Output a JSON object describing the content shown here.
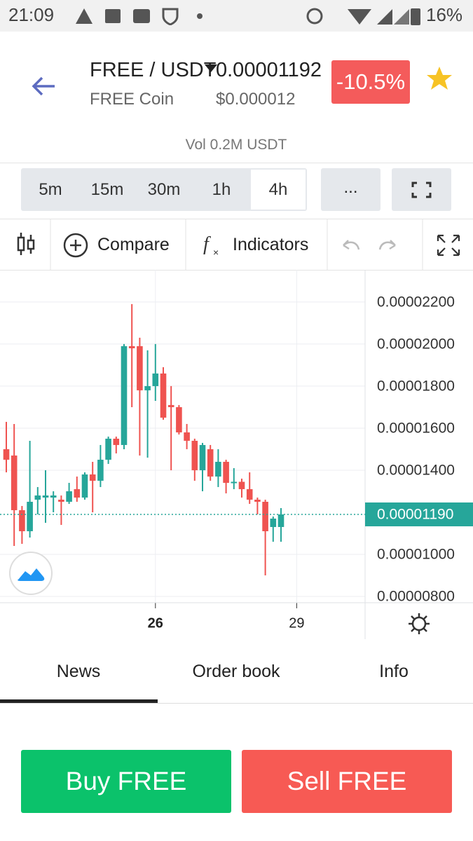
{
  "status": {
    "time": "21:09",
    "battery": "16%"
  },
  "header": {
    "pair": "FREE / USDT",
    "price": "0.00001192",
    "coin_name": "FREE Coin",
    "usd_price": "$0.000012",
    "change": "-10.5%"
  },
  "volume": "Vol 0.2M USDT",
  "intervals": [
    "5m",
    "15m",
    "30m",
    "1h",
    "4h"
  ],
  "more": "...",
  "toolbar": {
    "compare": "Compare",
    "indicators": "Indicators"
  },
  "tabs": [
    "News",
    "Order book",
    "Info"
  ],
  "buttons": {
    "buy": "Buy FREE",
    "sell": "Sell FREE"
  },
  "chart_data": {
    "type": "candlestick",
    "categories": [
      null,
      null,
      null,
      null,
      null,
      null,
      null,
      null,
      null,
      null,
      null,
      null,
      null,
      null,
      null,
      null,
      null,
      null,
      null,
      "26",
      null,
      null,
      null,
      null,
      null,
      null,
      null,
      null,
      null,
      null,
      null,
      null,
      null,
      null,
      null,
      null,
      null,
      "29"
    ],
    "open": [
      1.5e-05,
      1.47e-05,
      1.21e-05,
      1.11e-05,
      1.26e-05,
      1.27e-05,
      1.27e-05,
      1.26e-05,
      1.25e-05,
      1.31e-05,
      1.27e-05,
      1.38e-05,
      1.35e-05,
      1.45e-05,
      1.55e-05,
      1.52e-05,
      1.99e-05,
      1.99e-05,
      1.78e-05,
      1.8e-05,
      1.86e-05,
      1.71e-05,
      1.7e-05,
      1.58e-05,
      1.54e-05,
      1.4e-05,
      1.5e-05,
      1.37e-05,
      1.44e-05,
      1.34e-05,
      1.345e-05,
      1.31e-05,
      1.26e-05,
      1.25e-05,
      1.13e-05,
      1.13e-05,
      null,
      null
    ],
    "high": [
      1.63e-05,
      1.62e-05,
      1.23e-05,
      1.54e-05,
      1.32e-05,
      1.4e-05,
      1.3e-05,
      1.28e-05,
      1.34e-05,
      1.37e-05,
      1.39e-05,
      1.44e-05,
      1.52e-05,
      1.56e-05,
      1.56e-05,
      2e-05,
      2.19e-05,
      2.03e-05,
      1.97e-05,
      2e-05,
      1.89e-05,
      1.8e-05,
      1.71e-05,
      1.62e-05,
      1.55e-05,
      1.53e-05,
      1.52e-05,
      1.5e-05,
      1.45e-05,
      1.41e-05,
      1.36e-05,
      1.39e-05,
      1.27e-05,
      1.26e-05,
      1.18e-05,
      1.22e-05,
      null,
      null
    ],
    "low": [
      1.39e-05,
      1.04e-05,
      1.05e-05,
      1.08e-05,
      1.19e-05,
      1.15e-05,
      1.2e-05,
      1.14e-05,
      1.24e-05,
      1.25e-05,
      1.26e-05,
      1.2e-05,
      1.32e-05,
      1.43e-05,
      1.48e-05,
      1.5e-05,
      1.7e-05,
      1.47e-05,
      1.46e-05,
      1.73e-05,
      1.64e-05,
      1.4e-05,
      1.57e-05,
      1.5e-05,
      1.35e-05,
      1.3e-05,
      1.35e-05,
      1.32e-05,
      1.29e-05,
      1.31e-05,
      1.27e-05,
      1.24e-05,
      1.19e-05,
      9e-06,
      1.06e-05,
      1.06e-05,
      null,
      null
    ],
    "close": [
      1.45e-05,
      1.21e-05,
      1.11e-05,
      1.25e-05,
      1.28e-05,
      1.28e-05,
      1.28e-05,
      1.25e-05,
      1.3e-05,
      1.27e-05,
      1.38e-05,
      1.35e-05,
      1.45e-05,
      1.55e-05,
      1.52e-05,
      1.99e-05,
      1.98e-05,
      1.78e-05,
      1.8e-05,
      1.86e-05,
      1.65e-05,
      1.7e-05,
      1.58e-05,
      1.54e-05,
      1.4e-05,
      1.52e-05,
      1.37e-05,
      1.44e-05,
      1.34e-05,
      1.345e-05,
      1.31e-05,
      1.26e-05,
      1.25e-05,
      1.11e-05,
      1.17e-05,
      1.19e-05,
      null,
      null
    ],
    "up_color": "#26a69a",
    "down_color": "#ef5350",
    "ylim": [
      7.7e-06,
      2.353e-05
    ],
    "yticks": [
      {
        "value": 2.2e-05,
        "label": "0.00002200"
      },
      {
        "value": 2e-05,
        "label": "0.00002000"
      },
      {
        "value": 1.8e-05,
        "label": "0.00001800"
      },
      {
        "value": 1.6e-05,
        "label": "0.00001600"
      },
      {
        "value": 1.4e-05,
        "label": "0.00001400"
      },
      {
        "value": 1e-05,
        "label": "0.00001000"
      },
      {
        "value": 8e-06,
        "label": "0.00000800"
      }
    ],
    "last_price": {
      "value": 1.19e-05,
      "label": "0.00001190"
    },
    "grid": true
  }
}
